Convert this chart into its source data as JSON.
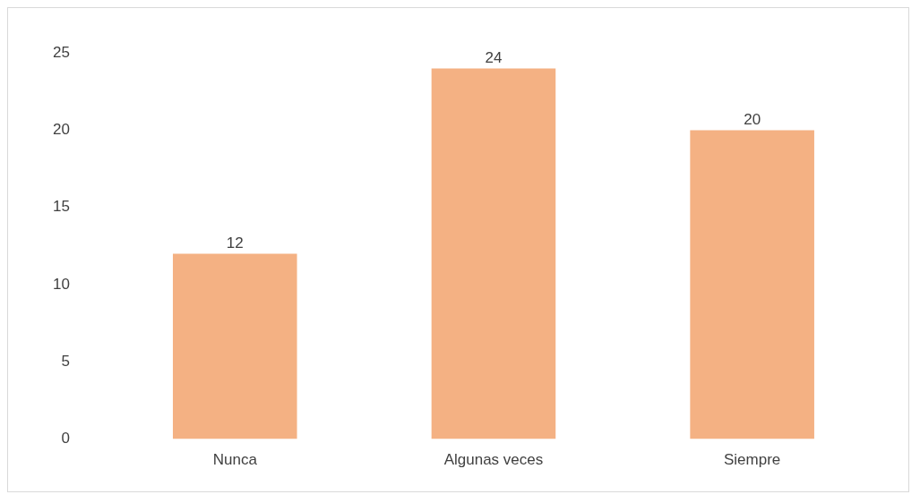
{
  "chart_data": {
    "type": "bar",
    "categories": [
      "Nunca",
      "Algunas veces",
      "Siempre"
    ],
    "values": [
      12,
      24,
      20
    ],
    "color": "#f4b183",
    "ylim": [
      0,
      25
    ],
    "yticks": [
      0,
      5,
      10,
      15,
      20,
      25
    ],
    "grid": false,
    "legend": false,
    "data_labels": true
  }
}
